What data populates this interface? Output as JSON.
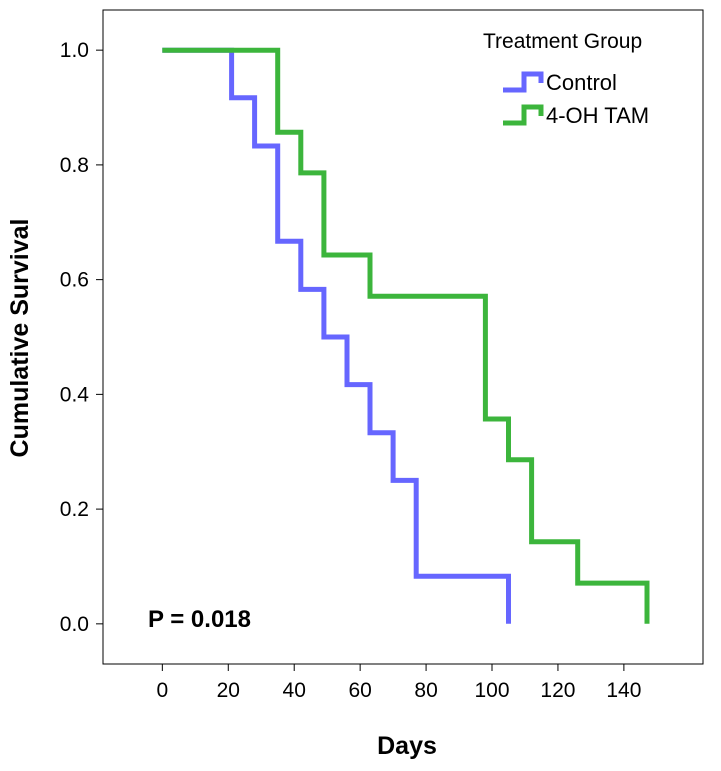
{
  "chart_data": {
    "type": "line",
    "subtype": "step",
    "title": "",
    "xlabel": "Days",
    "ylabel": "Cumulative Survival",
    "xlim": [
      -18,
      164
    ],
    "ylim": [
      -0.07,
      1.07
    ],
    "xticks": [
      0,
      20,
      40,
      60,
      80,
      100,
      120,
      140
    ],
    "yticks": [
      0.0,
      0.2,
      0.4,
      0.6,
      0.8,
      1.0
    ],
    "ytick_labels": [
      "0.0",
      "0.2",
      "0.4",
      "0.6",
      "0.8",
      "1.0"
    ],
    "grid": false,
    "legend": {
      "title": "Treatment Group",
      "placement": "top-right"
    },
    "annotation": "P = 0.018",
    "series": [
      {
        "name": "Control",
        "color": "#6666ff",
        "x": [
          0,
          21,
          21,
          28,
          28,
          35,
          35,
          42,
          42,
          49,
          49,
          56,
          56,
          63,
          63,
          70,
          70,
          77,
          77,
          105,
          105
        ],
        "y": [
          1.0,
          1.0,
          0.917,
          0.917,
          0.833,
          0.833,
          0.667,
          0.667,
          0.583,
          0.583,
          0.5,
          0.5,
          0.417,
          0.417,
          0.333,
          0.333,
          0.25,
          0.25,
          0.083,
          0.083,
          0.0
        ]
      },
      {
        "name": "4-OH TAM",
        "color": "#3cb53c",
        "x": [
          0,
          35,
          35,
          42,
          42,
          49,
          49,
          63,
          63,
          98,
          98,
          105,
          105,
          112,
          112,
          126,
          126,
          147,
          147
        ],
        "y": [
          1.0,
          1.0,
          0.857,
          0.857,
          0.786,
          0.786,
          0.643,
          0.643,
          0.571,
          0.571,
          0.357,
          0.357,
          0.286,
          0.286,
          0.143,
          0.143,
          0.071,
          0.071,
          0.0
        ]
      }
    ]
  }
}
